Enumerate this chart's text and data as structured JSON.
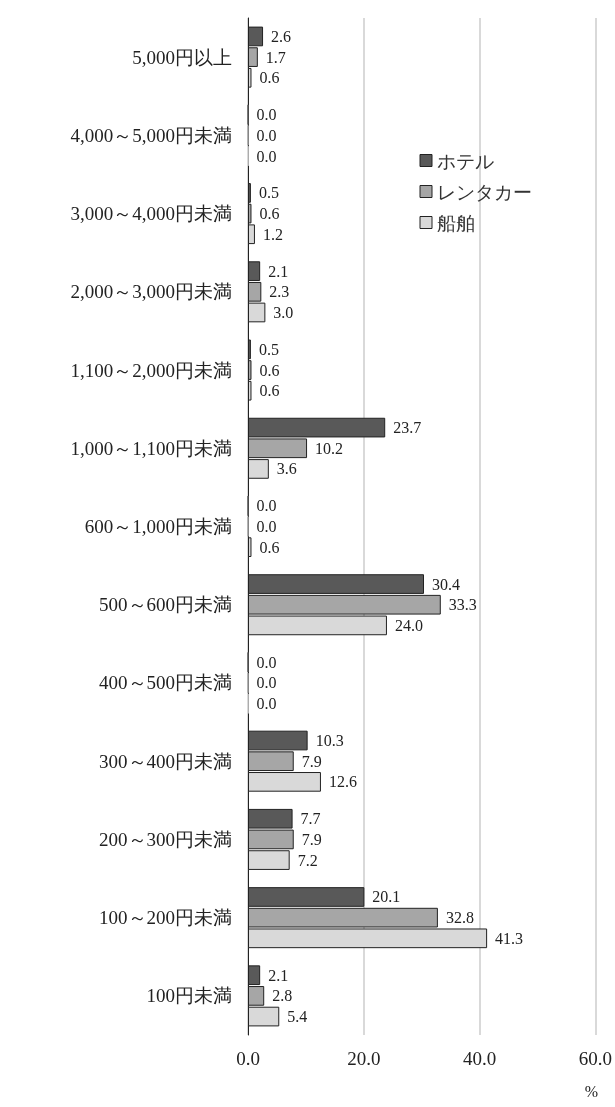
{
  "chart_data": {
    "type": "bar",
    "orientation": "horizontal",
    "xlabel": "%",
    "categories": [
      "5,000円以上",
      "4,000～5,000円未満",
      "3,000～4,000円未満",
      "2,000～3,000円未満",
      "1,100～2,000円未満",
      "1,000～1,100円未満",
      "600～1,000円未満",
      "500～600円未満",
      "400～500円未満",
      "300～400円未満",
      "200～300円未満",
      "100～200円未満",
      "100円未満"
    ],
    "series": [
      {
        "name": "ホテル",
        "color": "#595959",
        "values": [
          2.6,
          0,
          0.5,
          2.1,
          0.5,
          23.7,
          0,
          30.4,
          0,
          10.3,
          7.7,
          20.1,
          2.1
        ],
        "value_labels": [
          "2.6",
          "0.0",
          "0.5",
          "2.1",
          "0.5",
          "23.7",
          "0.0",
          "30.4",
          "0.0",
          "10.3",
          "7.7",
          "20.1",
          "2.1"
        ]
      },
      {
        "name": "レンタカー",
        "color": "#a6a6a6",
        "values": [
          1.7,
          0,
          0.6,
          2.3,
          0.6,
          10.2,
          0,
          33.3,
          0,
          7.9,
          7.9,
          32.8,
          2.8
        ],
        "value_labels": [
          "1.7",
          "0.0",
          "0.6",
          "2.3",
          "0.6",
          "10.2",
          "0.0",
          "33.3",
          "0.0",
          "7.9",
          "7.9",
          "32.8",
          "2.8"
        ]
      },
      {
        "name": "船舶",
        "color": "#d9d9d9",
        "values": [
          0.6,
          0,
          1.2,
          3.0,
          0.6,
          3.6,
          0.6,
          24.0,
          0,
          12.6,
          7.2,
          41.3,
          5.4
        ],
        "value_labels": [
          "0.6",
          "0.0",
          "1.2",
          "3.0",
          "0.6",
          "3.6",
          "0.6",
          "24.0",
          "0.0",
          "12.6",
          "7.2",
          "41.3",
          "5.4"
        ]
      }
    ],
    "xlim": [
      0,
      60
    ],
    "xticks": [
      {
        "value": 0,
        "label": "0.0"
      },
      {
        "value": 20,
        "label": "20.0"
      },
      {
        "value": 40,
        "label": "40.0"
      },
      {
        "value": 60,
        "label": "60.0"
      }
    ],
    "grid": "x",
    "legend": "top right"
  }
}
